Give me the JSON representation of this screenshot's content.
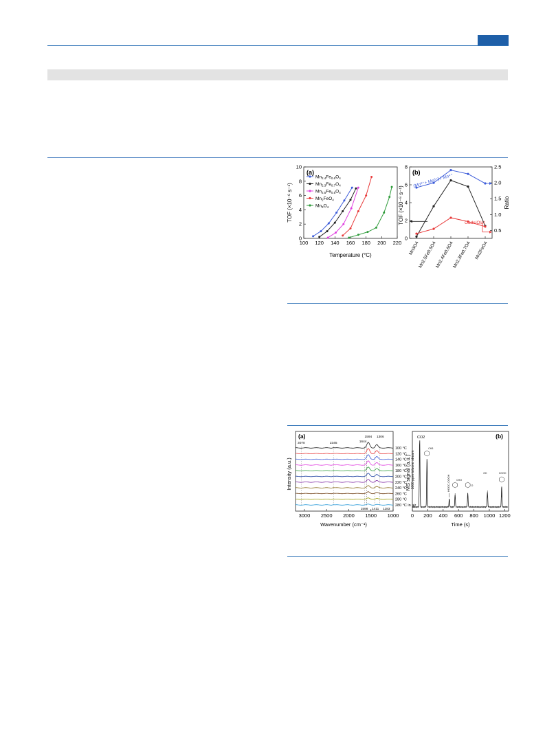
{
  "chart_data": [
    {
      "type": "line",
      "panel": "(a)",
      "xlabel": "Temperature (°C)",
      "ylabel": "TOF (×10⁻⁶ s⁻¹)",
      "xlim": [
        100,
        220
      ],
      "ylim": [
        0,
        10
      ],
      "x_ticks": [
        100,
        120,
        140,
        160,
        180,
        200,
        220
      ],
      "y_ticks": [
        0,
        2,
        4,
        6,
        8,
        10
      ],
      "legend_position": "top-left",
      "series": [
        {
          "name": "Mn2.4Fe0.6O4",
          "color": "#3b5bd9",
          "x": [
            112,
            122,
            132,
            142,
            152,
            162
          ],
          "y": [
            0.3,
            1.0,
            2.1,
            3.6,
            5.3,
            7.1
          ]
        },
        {
          "name": "Mn2.3Fe0.7O4",
          "color": "#222222",
          "x": [
            120,
            130,
            140,
            150,
            160,
            167
          ],
          "y": [
            0.2,
            1.0,
            2.2,
            3.8,
            5.4,
            7.0
          ]
        },
        {
          "name": "Mn2.5Fe0.5O4",
          "color": "#e040e0",
          "x": [
            131,
            141,
            151,
            161,
            170
          ],
          "y": [
            0.1,
            0.8,
            2.0,
            4.2,
            7.1
          ]
        },
        {
          "name": "Mn2FeO4",
          "color": "#e83a3a",
          "x": [
            150,
            160,
            170,
            180,
            187
          ],
          "y": [
            0.4,
            1.4,
            3.8,
            6.0,
            8.6
          ]
        },
        {
          "name": "Mn3O4",
          "color": "#2e9b3a",
          "x": [
            158,
            170,
            182,
            193,
            203,
            210,
            213
          ],
          "y": [
            0.1,
            0.5,
            0.9,
            1.5,
            3.6,
            5.8,
            7.2
          ]
        }
      ],
      "legend_labels": [
        {
          "base": "Mn",
          "s1": "2.4",
          "mid": "Fe",
          "s2": "0.6",
          "end": "O",
          "s3": "4"
        },
        {
          "base": "Mn",
          "s1": "2.3",
          "mid": "Fe",
          "s2": "0.7",
          "end": "O",
          "s3": "4"
        },
        {
          "base": "Mn",
          "s1": "2.5",
          "mid": "Fe",
          "s2": "0.5",
          "end": "O",
          "s3": "4"
        },
        {
          "base": "Mn",
          "s1": "2",
          "mid": "FeO",
          "s2": "",
          "end": "",
          "s3": "4"
        },
        {
          "base": "Mn",
          "s1": "3",
          "mid": "O",
          "s2": "",
          "end": "",
          "s3": "4"
        }
      ]
    },
    {
      "type": "line",
      "panel": "(b)",
      "ylabel_left": "TOF (×10⁻⁶ s⁻¹)",
      "ylabel_right": "Ratio",
      "ylim_left": [
        0,
        8
      ],
      "ylim_right": [
        0.25,
        2.5
      ],
      "y_ticks_left": [
        0,
        2,
        4,
        6,
        8
      ],
      "y_ticks_right": [
        0.5,
        1.0,
        1.5,
        2.0,
        2.5
      ],
      "categories": [
        "Mn3O4",
        "Mn2.5Fe0.5O4",
        "Mn2.4Fe0.6O4",
        "Mn2.3Fe0.7O4",
        "Mn2FeO4"
      ],
      "series": [
        {
          "name": "(Mn²⁺+Mn³⁺)/Mn⁴⁺",
          "axis": "right",
          "color": "#3b5bd9",
          "values": [
            1.85,
            2.0,
            2.4,
            2.28,
            1.98
          ]
        },
        {
          "name": "TOF",
          "axis": "left",
          "color": "#222222",
          "values": [
            0.2,
            3.6,
            6.5,
            5.8,
            1.4
          ]
        },
        {
          "name": "Oads/Olat",
          "axis": "right",
          "color": "#e83a3a",
          "values": [
            0.4,
            0.55,
            0.9,
            0.78,
            0.62
          ]
        }
      ],
      "annotations": {
        "blue": "(Mn²⁺+ Mn³⁺) / Mn⁴⁺",
        "red": "Oads/Olat"
      }
    },
    {
      "type": "line",
      "panel": "(a)",
      "xlabel": "Wavenumber (cm⁻¹)",
      "ylabel": "Intensity (a.u.)",
      "x_ticks": [
        3000,
        2500,
        2000,
        1500,
        1000
      ],
      "peak_labels_top": [
        "3070",
        "2345",
        "1644",
        "1594",
        "1306"
      ],
      "peak_labels_bottom": [
        "1598",
        "1411",
        "1183"
      ],
      "side_label": "1000 ppm toluene stream",
      "row_labels": [
        "100 °C",
        "120 °C",
        "140 °C",
        "160 °C",
        "180 °C",
        "200 °C",
        "220 °C",
        "240 °C",
        "260 °C",
        "280 °C",
        "280 °C in air"
      ],
      "row_colors": [
        "#222222",
        "#e83a3a",
        "#3b5bd9",
        "#e040e0",
        "#2e9b3a",
        "#1a3fa0",
        "#7a1fa0",
        "#8a6d1a",
        "#6d3b10",
        "#999900",
        "#2a9bd9"
      ]
    },
    {
      "type": "line",
      "panel": "(b)",
      "xlabel": "Time (s)",
      "ylabel": "MS signal (a.u.)",
      "xlim": [
        0,
        1250
      ],
      "x_ticks": [
        0,
        200,
        400,
        600,
        800,
        1000,
        1200
      ],
      "peak_label": "CO2",
      "peaks": [
        {
          "t": 95,
          "h": 1.0
        },
        {
          "t": 190,
          "h": 0.72
        },
        {
          "t": 480,
          "h": 0.12
        },
        {
          "t": 555,
          "h": 0.18
        },
        {
          "t": 720,
          "h": 0.2
        },
        {
          "t": 975,
          "h": 0.22
        },
        {
          "t": 1160,
          "h": 0.3
        }
      ],
      "structure_labels": [
        "CH3",
        "HOOC-COOH",
        "CHO",
        "O",
        "OH",
        "COOH"
      ]
    }
  ]
}
